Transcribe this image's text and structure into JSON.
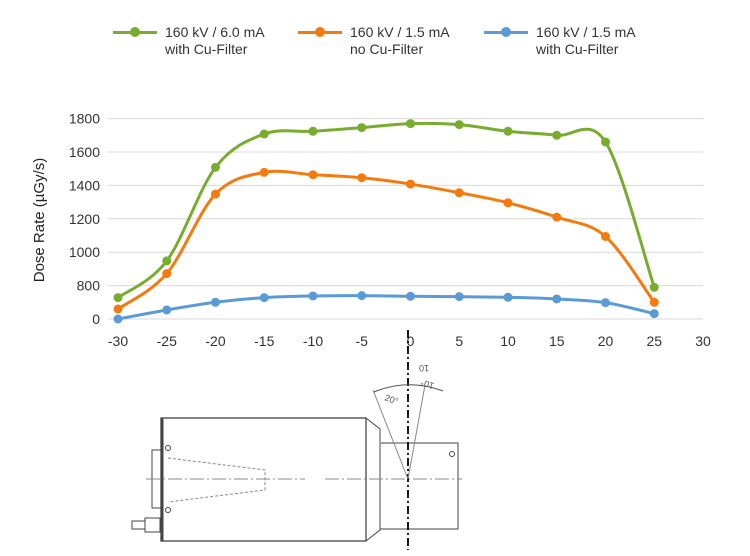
{
  "chart_data": {
    "type": "line",
    "title": "",
    "xlabel": "",
    "ylabel": "Dose Rate (µGy/s)",
    "x": [
      -30,
      -25,
      -20,
      -15,
      -10,
      -5,
      0,
      5,
      10,
      15,
      20,
      25
    ],
    "x_ticks": [
      "-30",
      "-25",
      "-20",
      "-15",
      "-10",
      "-5",
      "0",
      "5",
      "10",
      "15",
      "20",
      "25",
      "30"
    ],
    "xlim": [
      -30,
      30
    ],
    "y_ticks": [
      "0",
      "800",
      "1000",
      "1200",
      "1400",
      "1600",
      "1800"
    ],
    "y_tick_values": [
      0,
      800,
      1000,
      1200,
      1400,
      1600,
      1800
    ],
    "ylim": [
      0,
      1800
    ],
    "grid": true,
    "legend_position": "top",
    "series": [
      {
        "name": "160 kV / 6.0 mA",
        "name2": "with Cu-Filter",
        "color": "#78AC2E",
        "values": [
          512,
          948,
          1508,
          1708,
          1724,
          1746,
          1770,
          1764,
          1724,
          1700,
          1660,
          760
        ]
      },
      {
        "name": "160 kV / 1.5 mA",
        "name2": "no Cu-Filter",
        "color": "#F57A0E",
        "values": [
          240,
          872,
          1348,
          1478,
          1464,
          1446,
          1408,
          1356,
          1296,
          1210,
          1094,
          400
        ]
      },
      {
        "name": "160 kV / 1.5 mA",
        "name2": "with Cu-Filter",
        "color": "#5B9BD5",
        "values": [
          0,
          216,
          400,
          512,
          552,
          560,
          544,
          536,
          520,
          480,
          392,
          128
        ]
      }
    ]
  },
  "diagram": {
    "angle_left": "20°",
    "angle_right": "10°",
    "angle_top": "10"
  }
}
